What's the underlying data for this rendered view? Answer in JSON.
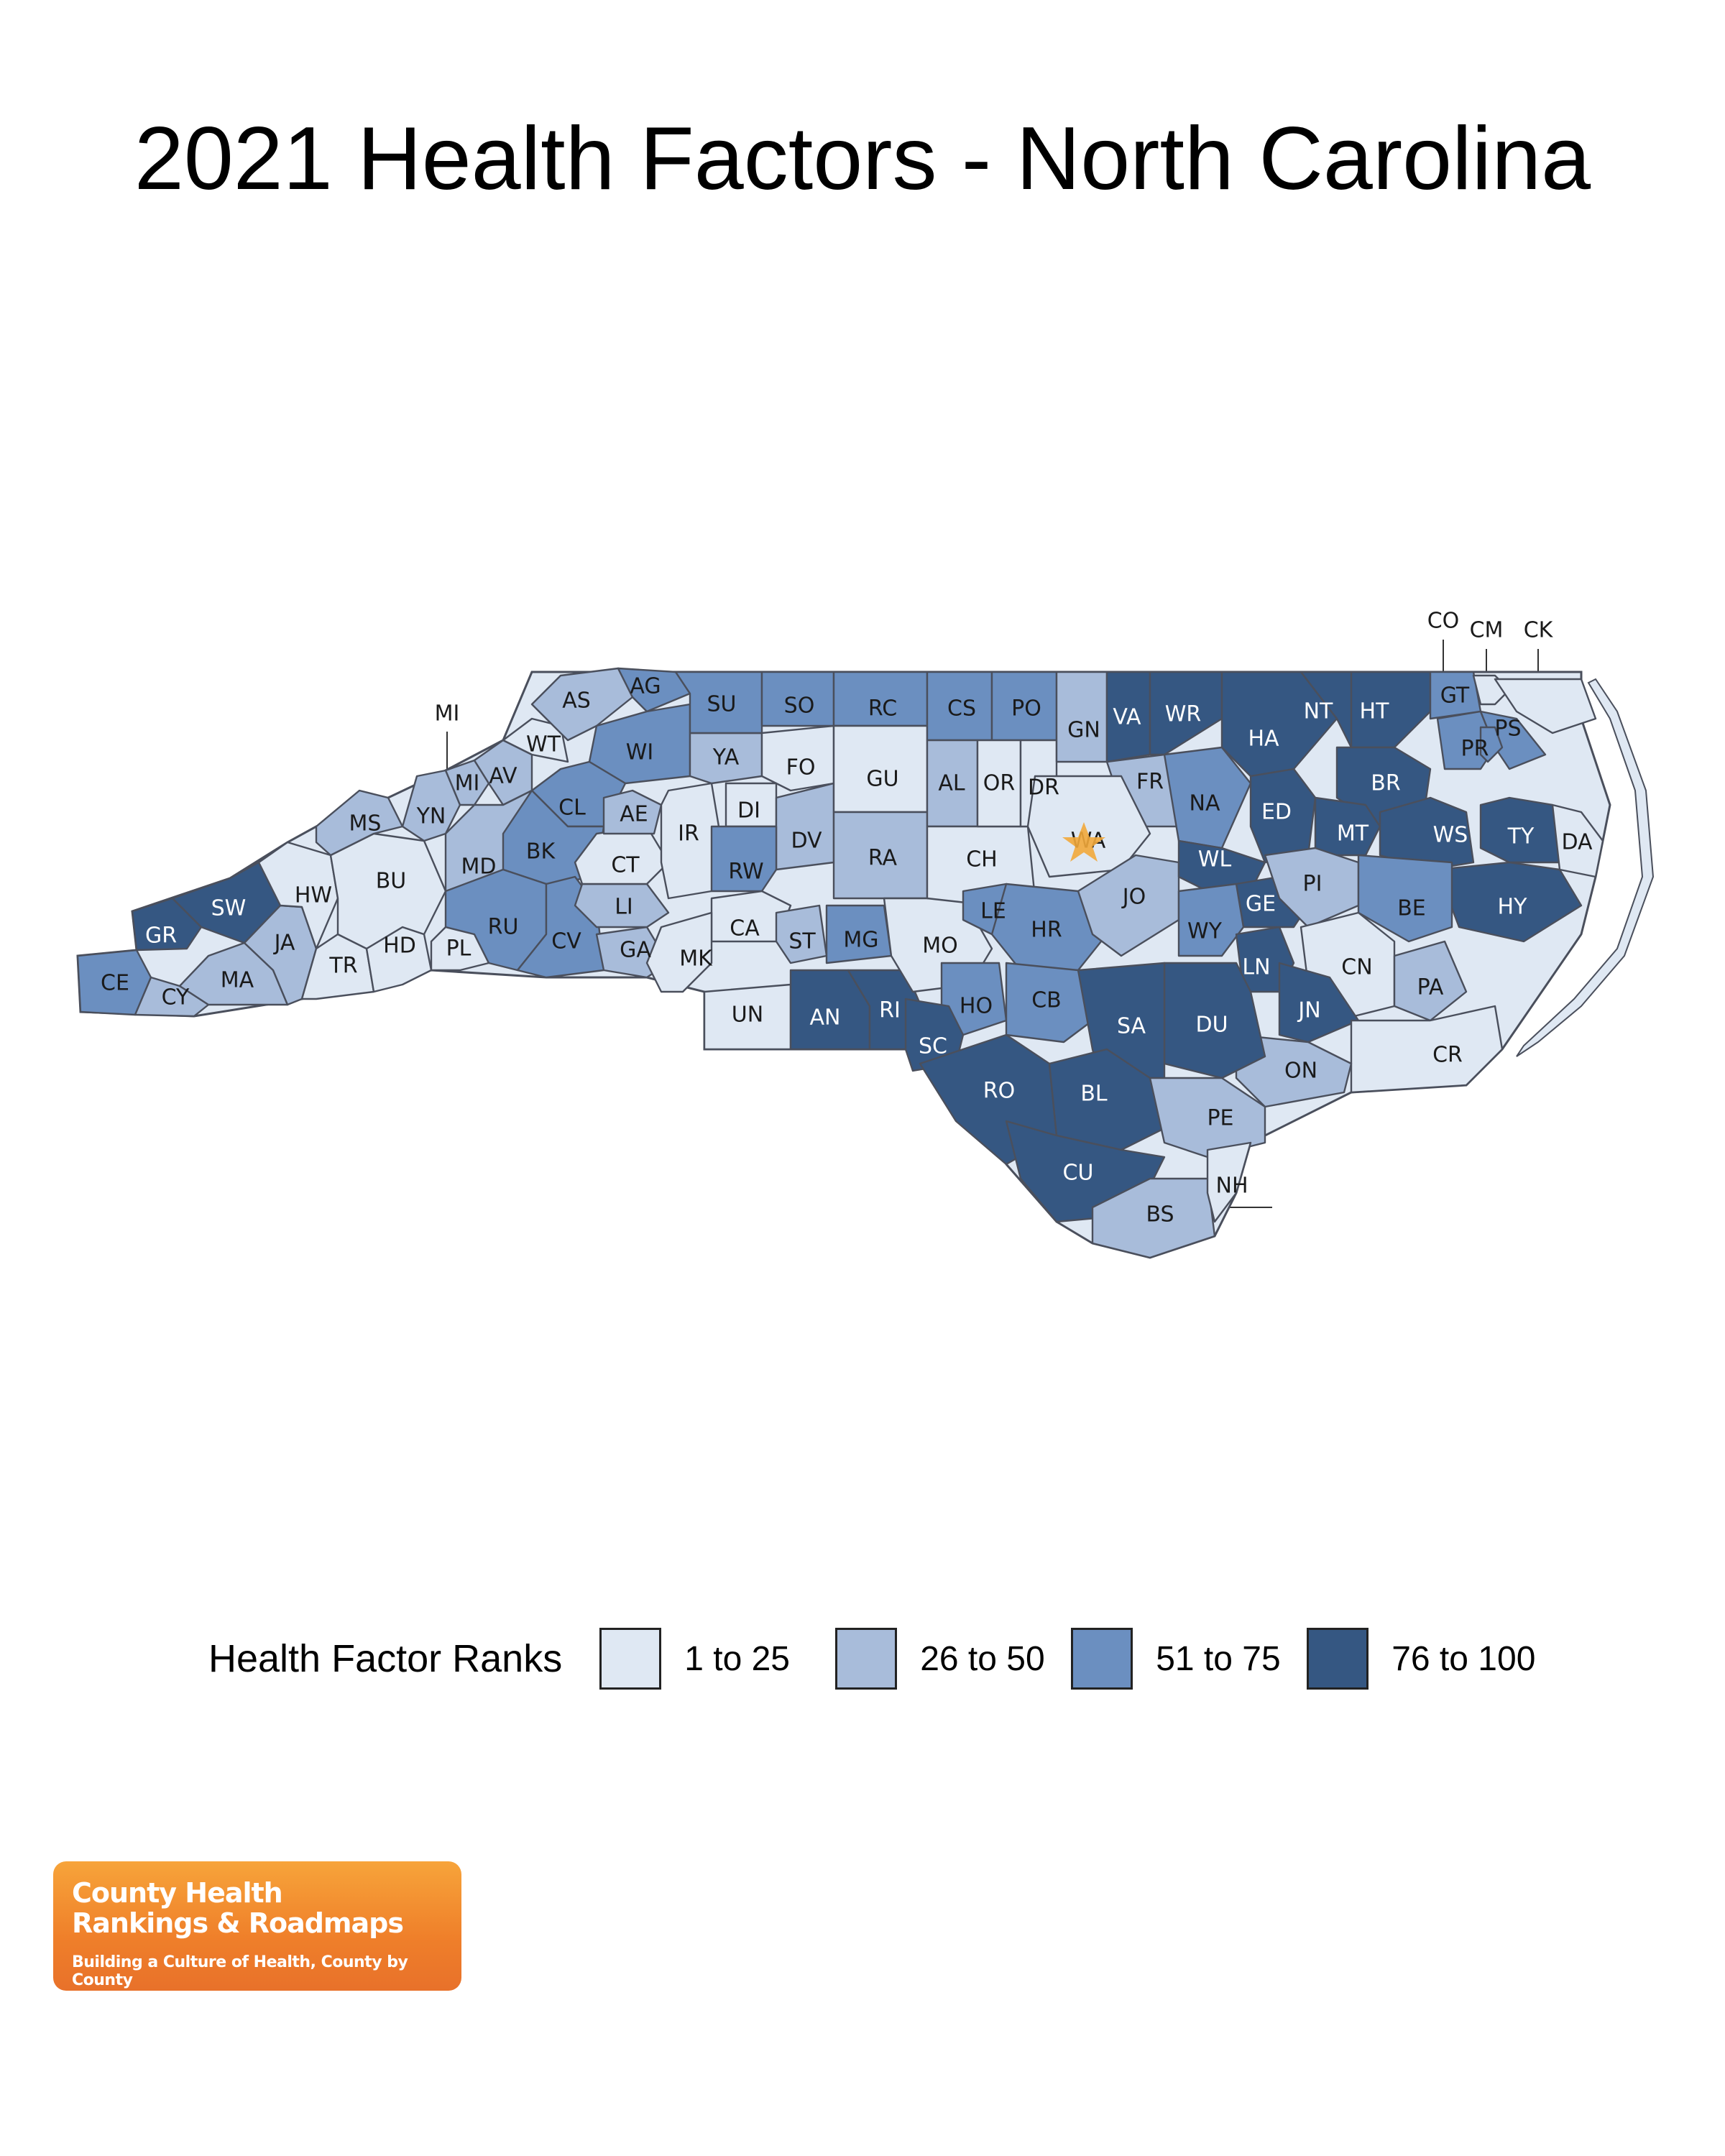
{
  "title": "2021 Health Factors - North Carolina",
  "colors": {
    "q1": "#dfe8f3",
    "q2": "#a8bcda",
    "q3": "#6b8fc0",
    "q4": "#355782",
    "outline": "#4a4f5c",
    "marker": "#f2a93b"
  },
  "legend": {
    "title": "Health Factor Ranks",
    "items": [
      {
        "label": "1 to 25",
        "quartile": 1
      },
      {
        "label": "26 to 50",
        "quartile": 2
      },
      {
        "label": "51 to 75",
        "quartile": 3
      },
      {
        "label": "76 to 100",
        "quartile": 4
      }
    ]
  },
  "counties": [
    {
      "code": "CE",
      "quartile": 3
    },
    {
      "code": "CY",
      "quartile": 2
    },
    {
      "code": "GR",
      "quartile": 4
    },
    {
      "code": "SW",
      "quartile": 4
    },
    {
      "code": "MA",
      "quartile": 2
    },
    {
      "code": "JA",
      "quartile": 2
    },
    {
      "code": "HW",
      "quartile": 1
    },
    {
      "code": "TR",
      "quartile": 1
    },
    {
      "code": "HD",
      "quartile": 1
    },
    {
      "code": "BU",
      "quartile": 1
    },
    {
      "code": "MS",
      "quartile": 2
    },
    {
      "code": "YN",
      "quartile": 2
    },
    {
      "code": "MI",
      "quartile": 2
    },
    {
      "code": "AV",
      "quartile": 2
    },
    {
      "code": "WT",
      "quartile": 1
    },
    {
      "code": "AS",
      "quartile": 2
    },
    {
      "code": "AG",
      "quartile": 3
    },
    {
      "code": "WI",
      "quartile": 3
    },
    {
      "code": "CL",
      "quartile": 3
    },
    {
      "code": "BK",
      "quartile": 3
    },
    {
      "code": "MD",
      "quartile": 2
    },
    {
      "code": "PL",
      "quartile": 1
    },
    {
      "code": "RU",
      "quartile": 3
    },
    {
      "code": "CV",
      "quartile": 3
    },
    {
      "code": "GA",
      "quartile": 2
    },
    {
      "code": "LI",
      "quartile": 2
    },
    {
      "code": "CT",
      "quartile": 1
    },
    {
      "code": "AE",
      "quartile": 2
    },
    {
      "code": "IR",
      "quartile": 1
    },
    {
      "code": "YA",
      "quartile": 2
    },
    {
      "code": "SU",
      "quartile": 3
    },
    {
      "code": "SO",
      "quartile": 3
    },
    {
      "code": "FO",
      "quartile": 1
    },
    {
      "code": "DI",
      "quartile": 1
    },
    {
      "code": "DV",
      "quartile": 2
    },
    {
      "code": "RW",
      "quartile": 3
    },
    {
      "code": "CA",
      "quartile": 1
    },
    {
      "code": "MK",
      "quartile": 1
    },
    {
      "code": "UN",
      "quartile": 1
    },
    {
      "code": "ST",
      "quartile": 2
    },
    {
      "code": "MG",
      "quartile": 3
    },
    {
      "code": "AN",
      "quartile": 4
    },
    {
      "code": "RI",
      "quartile": 4
    },
    {
      "code": "RC",
      "quartile": 3
    },
    {
      "code": "GU",
      "quartile": 1
    },
    {
      "code": "RA",
      "quartile": 2
    },
    {
      "code": "MO",
      "quartile": 1
    },
    {
      "code": "CS",
      "quartile": 3
    },
    {
      "code": "AL",
      "quartile": 2
    },
    {
      "code": "CH",
      "quartile": 1
    },
    {
      "code": "PO",
      "quartile": 3
    },
    {
      "code": "OR",
      "quartile": 1
    },
    {
      "code": "DR",
      "quartile": 1
    },
    {
      "code": "LE",
      "quartile": 3
    },
    {
      "code": "HR",
      "quartile": 3
    },
    {
      "code": "HO",
      "quartile": 3
    },
    {
      "code": "SC",
      "quartile": 4
    },
    {
      "code": "RO",
      "quartile": 4
    },
    {
      "code": "CB",
      "quartile": 3
    },
    {
      "code": "GN",
      "quartile": 2
    },
    {
      "code": "VA",
      "quartile": 4
    },
    {
      "code": "WR",
      "quartile": 4
    },
    {
      "code": "FR",
      "quartile": 2
    },
    {
      "code": "WA",
      "quartile": 1
    },
    {
      "code": "JO",
      "quartile": 2
    },
    {
      "code": "NA",
      "quartile": 3
    },
    {
      "code": "HA",
      "quartile": 4
    },
    {
      "code": "NT",
      "quartile": 4
    },
    {
      "code": "HT",
      "quartile": 4
    },
    {
      "code": "GT",
      "quartile": 3
    },
    {
      "code": "ED",
      "quartile": 4
    },
    {
      "code": "WL",
      "quartile": 4
    },
    {
      "code": "BR",
      "quartile": 4
    },
    {
      "code": "MT",
      "quartile": 4
    },
    {
      "code": "WS",
      "quartile": 4
    },
    {
      "code": "TY",
      "quartile": 4
    },
    {
      "code": "HY",
      "quartile": 4
    },
    {
      "code": "DA",
      "quartile": 1
    },
    {
      "code": "PR",
      "quartile": 3
    },
    {
      "code": "PS",
      "quartile": 3
    },
    {
      "code": "CO",
      "quartile": 3
    },
    {
      "code": "CM",
      "quartile": 1
    },
    {
      "code": "CK",
      "quartile": 1
    },
    {
      "code": "GE",
      "quartile": 4
    },
    {
      "code": "WY",
      "quartile": 3
    },
    {
      "code": "LN",
      "quartile": 4
    },
    {
      "code": "PI",
      "quartile": 2
    },
    {
      "code": "BE",
      "quartile": 3
    },
    {
      "code": "CN",
      "quartile": 1
    },
    {
      "code": "JN",
      "quartile": 4
    },
    {
      "code": "PA",
      "quartile": 2
    },
    {
      "code": "CR",
      "quartile": 1
    },
    {
      "code": "ON",
      "quartile": 2
    },
    {
      "code": "DU",
      "quartile": 4
    },
    {
      "code": "SA",
      "quartile": 4
    },
    {
      "code": "BL",
      "quartile": 4
    },
    {
      "code": "PE",
      "quartile": 2
    },
    {
      "code": "CU",
      "quartile": 4
    },
    {
      "code": "BS",
      "quartile": 2
    },
    {
      "code": "NH",
      "quartile": 1
    }
  ],
  "state_capital_marker": "star-icon",
  "logo": {
    "line1": "County Health",
    "line2": "Rankings & Roadmaps",
    "tagline": "Building a Culture of Health, County by County"
  }
}
